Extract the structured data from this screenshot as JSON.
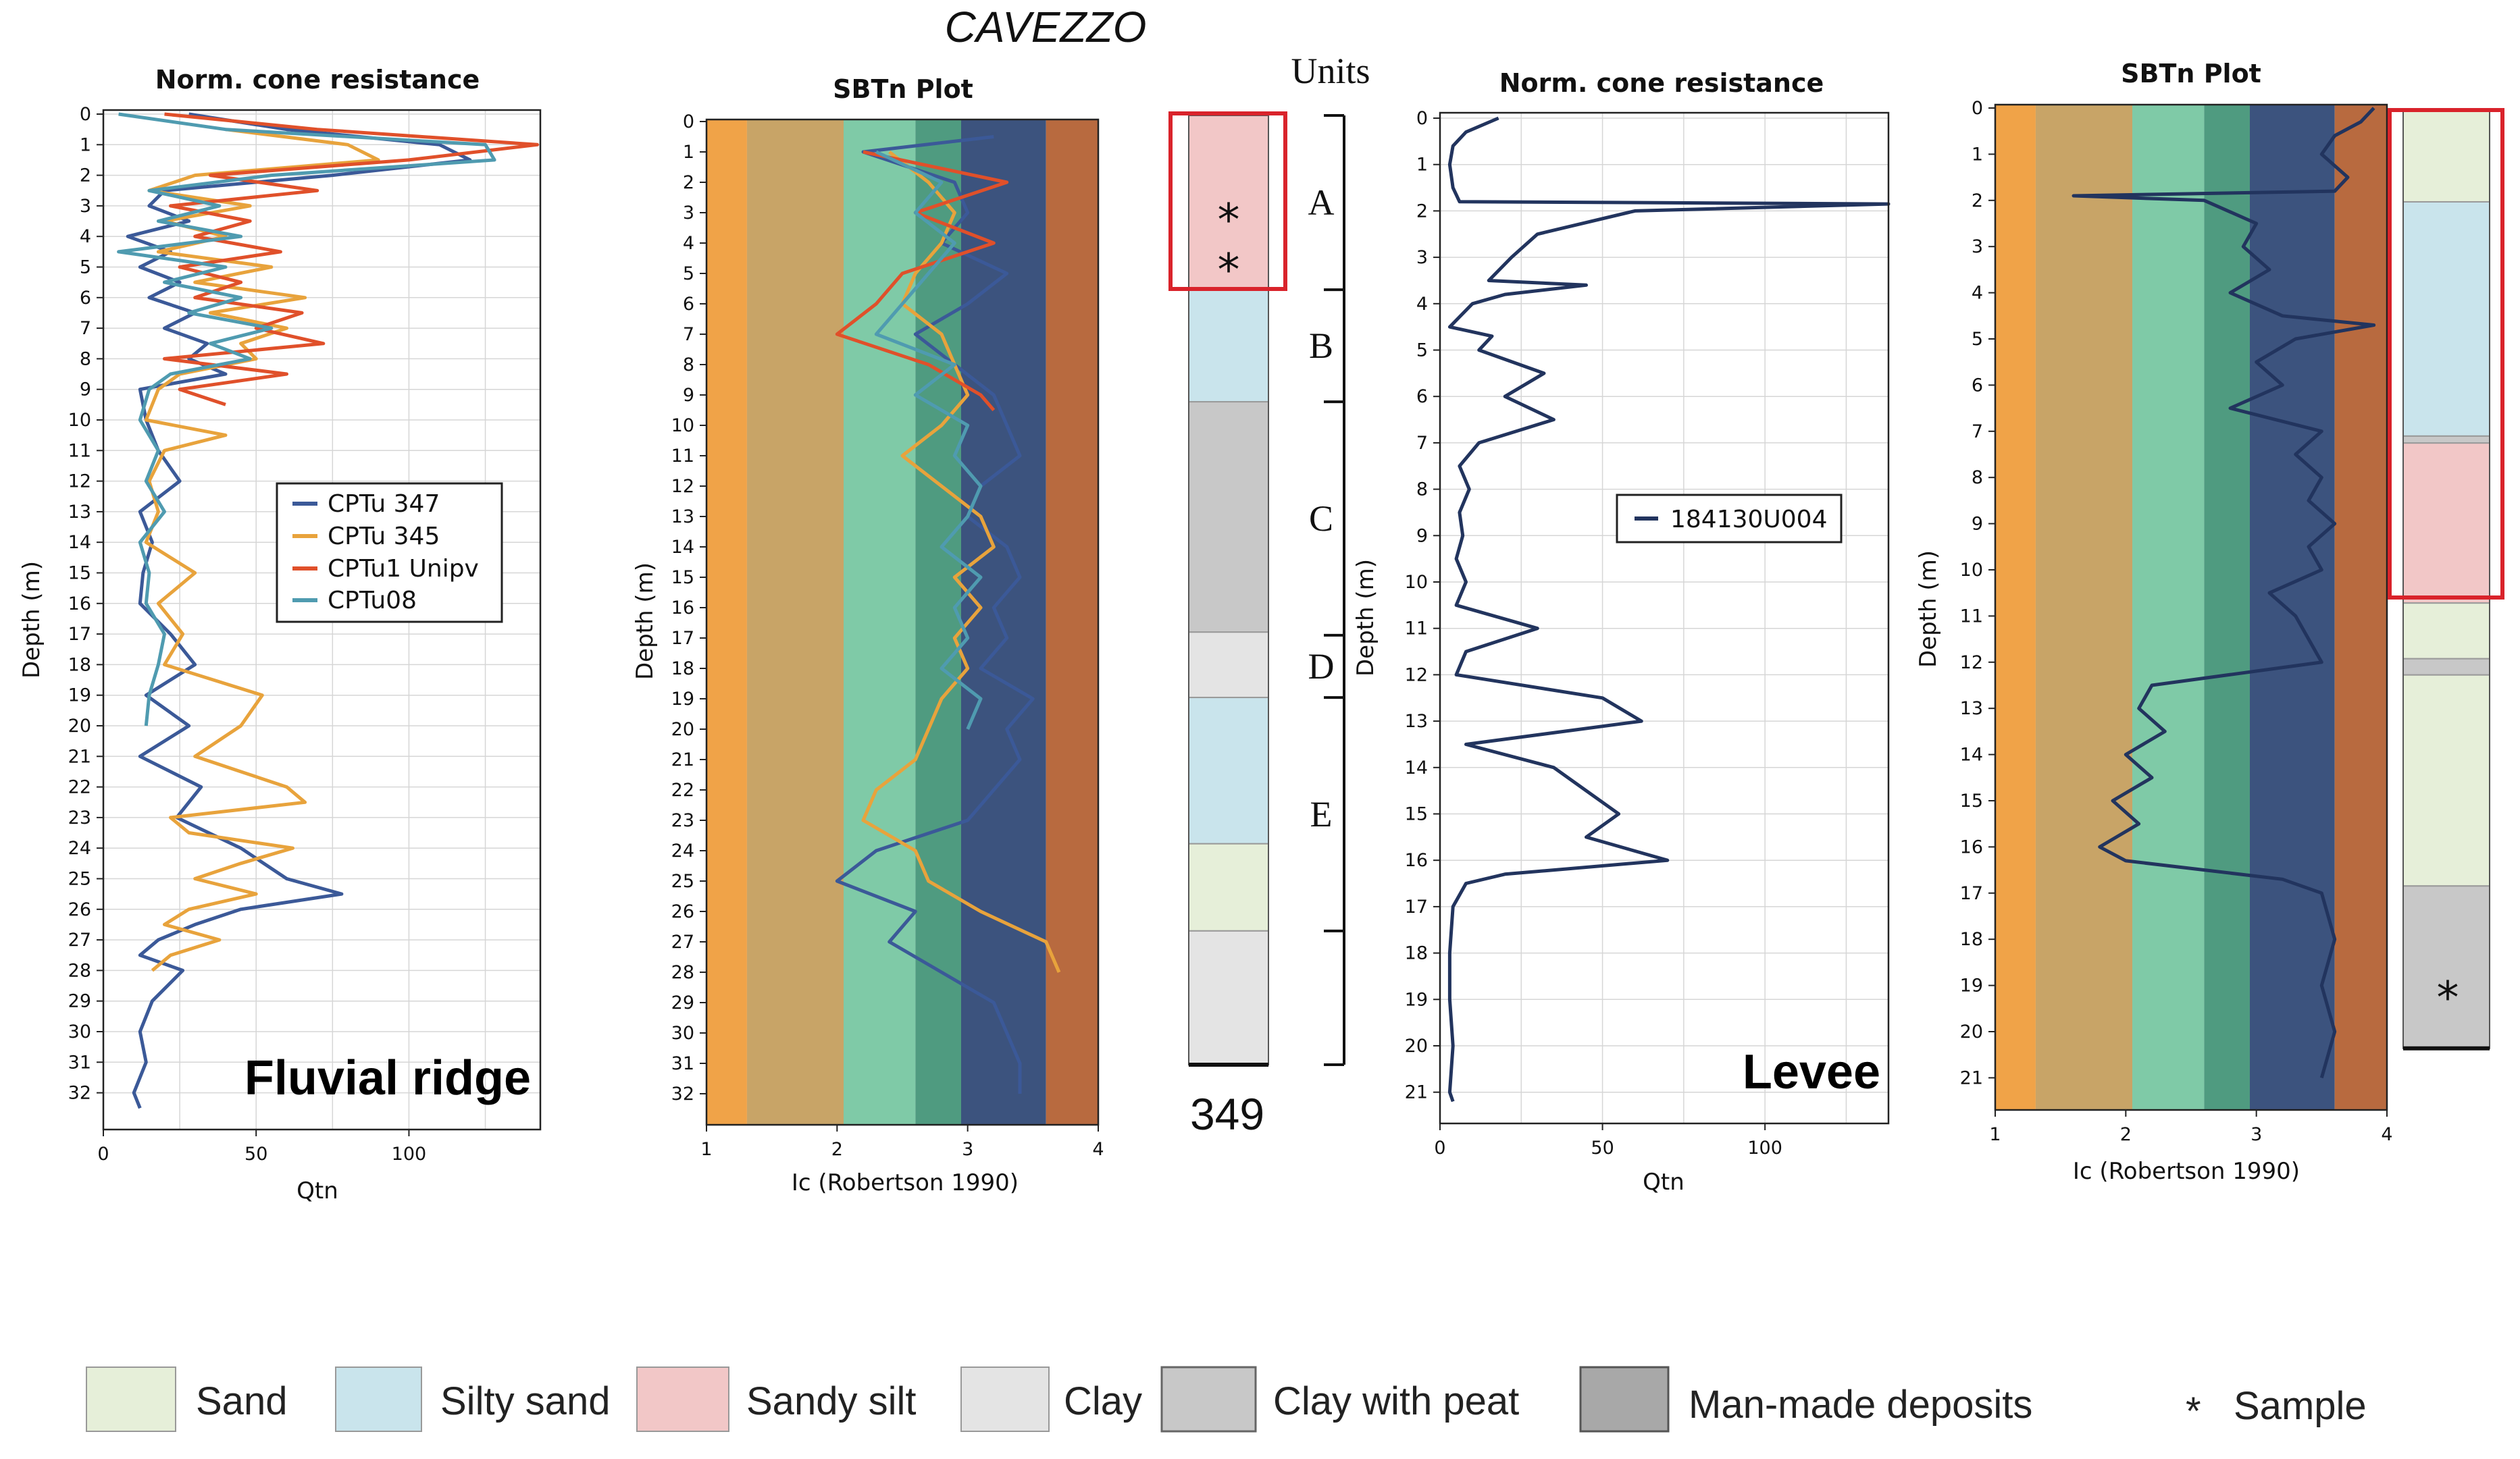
{
  "figure": {
    "title": "CAVEZZO",
    "units_label": "Units",
    "site_label": "349",
    "left_annotation": "Fluvial ridge",
    "right_annotation": "Levee",
    "sample_marker": "*"
  },
  "colors": {
    "cpt347": "#3b5998",
    "cpt345": "#e8a33c",
    "cptu1": "#e0502a",
    "cptu08": "#4f9bb0",
    "levee_line": "#22345e",
    "sbt": [
      "#f0a348",
      "#c8a467",
      "#7fcaa7",
      "#4f9b80",
      "#3c537e",
      "#b86a3f"
    ],
    "sand": "#e6efd9",
    "silty_sand": "#c9e4ec",
    "sandy_silt": "#f2c7c7",
    "clay": "#e4e4e4",
    "clay_peat": "#c8c8c8",
    "manmade": "#a8a8a8",
    "outline": "#d9232b"
  },
  "chart_data": [
    {
      "id": "qtn_fluvial",
      "type": "line",
      "title": "Norm. cone resistance",
      "xlabel": "Qtn",
      "ylabel": "Depth (m)",
      "xlim": [
        0,
        143
      ],
      "ylim": [
        0,
        33
      ],
      "xticks": [
        0,
        50,
        100
      ],
      "yticks": [
        0,
        1,
        2,
        3,
        4,
        5,
        6,
        7,
        8,
        9,
        10,
        11,
        12,
        13,
        14,
        15,
        16,
        17,
        18,
        19,
        20,
        21,
        22,
        23,
        24,
        25,
        26,
        27,
        28,
        29,
        30,
        31,
        32
      ],
      "series": [
        {
          "name": "CPTu 347",
          "color_key": "cpt347",
          "depth": [
            0,
            0.5,
            1,
            1.5,
            2,
            2.5,
            3,
            3.5,
            4,
            4.5,
            5,
            5.5,
            6,
            6.5,
            7,
            7.5,
            8,
            8.5,
            9,
            10,
            11,
            12,
            13,
            14,
            15,
            16,
            17,
            18,
            19,
            20,
            21,
            22,
            23,
            24,
            25,
            25.5,
            26,
            26.5,
            27,
            27.5,
            28,
            29,
            30,
            31,
            32,
            32.5
          ],
          "qtn": [
            28,
            60,
            110,
            120,
            75,
            20,
            15,
            28,
            8,
            22,
            12,
            25,
            15,
            30,
            20,
            34,
            28,
            40,
            12,
            14,
            18,
            25,
            12,
            16,
            13,
            12,
            22,
            30,
            14,
            28,
            12,
            32,
            24,
            45,
            60,
            78,
            45,
            30,
            18,
            12,
            26,
            16,
            12,
            14,
            10,
            12
          ]
        },
        {
          "name": "CPTu 345",
          "color_key": "cpt345",
          "depth": [
            0.5,
            1,
            1.5,
            2,
            2.5,
            3,
            3.5,
            4,
            4.5,
            5,
            5.5,
            6,
            6.5,
            7,
            7.5,
            8,
            8.5,
            9,
            10,
            10.5,
            11,
            12,
            13,
            14,
            15,
            16,
            17,
            18,
            19,
            20,
            21,
            22,
            22.5,
            23,
            23.5,
            24,
            24.5,
            25,
            25.5,
            26,
            26.5,
            27,
            27.5,
            28
          ],
          "qtn": [
            40,
            80,
            90,
            30,
            15,
            48,
            20,
            40,
            18,
            55,
            30,
            66,
            35,
            60,
            45,
            50,
            25,
            18,
            14,
            40,
            20,
            15,
            18,
            14,
            30,
            18,
            26,
            20,
            52,
            45,
            30,
            60,
            66,
            22,
            28,
            62,
            45,
            30,
            50,
            28,
            20,
            38,
            22,
            16
          ]
        },
        {
          "name": "CPTu1 Unipv",
          "color_key": "cptu1",
          "depth": [
            0,
            0.5,
            1,
            1.5,
            2,
            2.5,
            3,
            3.5,
            4,
            4.5,
            5,
            5.5,
            6,
            6.5,
            7,
            7.5,
            8,
            8.5,
            9,
            9.5
          ],
          "qtn": [
            20,
            70,
            142,
            100,
            35,
            70,
            22,
            48,
            30,
            58,
            25,
            45,
            30,
            65,
            50,
            72,
            20,
            60,
            25,
            40
          ]
        },
        {
          "name": "CPTu08",
          "color_key": "cptu08",
          "depth": [
            0,
            0.5,
            1,
            1.5,
            2,
            2.5,
            3,
            3.5,
            4,
            4.5,
            5,
            5.5,
            6,
            6.5,
            7,
            7.5,
            8,
            8.5,
            9,
            10,
            11,
            12,
            13,
            14,
            15,
            16,
            17,
            18,
            19,
            20
          ],
          "qtn": [
            5,
            40,
            125,
            128,
            55,
            15,
            38,
            18,
            45,
            5,
            40,
            20,
            45,
            28,
            55,
            35,
            48,
            22,
            15,
            12,
            18,
            14,
            20,
            12,
            15,
            14,
            20,
            18,
            15,
            14
          ]
        }
      ]
    },
    {
      "id": "sbtn_fluvial",
      "type": "line",
      "title": "SBTn Plot",
      "xlabel": "Ic (Robertson 1990)",
      "ylabel": "Depth (m)",
      "xlim": [
        1,
        4
      ],
      "ylim": [
        0,
        33
      ],
      "xticks": [
        1,
        2,
        3,
        4
      ],
      "yticks": [
        0,
        1,
        2,
        3,
        4,
        5,
        6,
        7,
        8,
        9,
        10,
        11,
        12,
        13,
        14,
        15,
        16,
        17,
        18,
        19,
        20,
        21,
        22,
        23,
        24,
        25,
        26,
        27,
        28,
        29,
        30,
        31,
        32
      ],
      "zone_bounds": [
        1,
        1.31,
        2.05,
        2.6,
        2.95,
        3.6,
        4
      ],
      "series": [
        {
          "name": "CPTu 347",
          "color_key": "cpt347",
          "depth": [
            0.5,
            1,
            2,
            3,
            4,
            5,
            6,
            7,
            8,
            9,
            10,
            11,
            12,
            13,
            14,
            15,
            16,
            17,
            18,
            19,
            20,
            21,
            22,
            23,
            24,
            25,
            26,
            27,
            28,
            29,
            30,
            31,
            32
          ],
          "ic": [
            3.2,
            2.2,
            2.9,
            3.0,
            2.8,
            3.3,
            3.0,
            2.6,
            2.9,
            3.2,
            3.3,
            3.4,
            3.1,
            3.0,
            3.3,
            3.4,
            3.2,
            3.3,
            3.1,
            3.5,
            3.3,
            3.4,
            3.2,
            3.0,
            2.3,
            2.0,
            2.6,
            2.4,
            2.8,
            3.2,
            3.3,
            3.4,
            3.4
          ]
        },
        {
          "name": "CPTu 345",
          "color_key": "cpt345",
          "depth": [
            1,
            2,
            3,
            4,
            5,
            6,
            7,
            8,
            9,
            10,
            11,
            12,
            13,
            14,
            15,
            16,
            17,
            18,
            19,
            20,
            21,
            22,
            23,
            24,
            25,
            26,
            27,
            28
          ],
          "ic": [
            2.4,
            2.7,
            2.9,
            2.8,
            2.6,
            2.5,
            2.8,
            2.9,
            3.0,
            2.8,
            2.5,
            2.8,
            3.1,
            3.2,
            2.9,
            3.1,
            2.9,
            3.0,
            2.8,
            2.7,
            2.6,
            2.3,
            2.2,
            2.6,
            2.7,
            3.1,
            3.6,
            3.7
          ]
        },
        {
          "name": "CPTu1 Unipv",
          "color_key": "cptu1",
          "depth": [
            1,
            2,
            3,
            4,
            5,
            6,
            7,
            8,
            9,
            9.5
          ],
          "ic": [
            2.2,
            3.3,
            2.6,
            3.2,
            2.5,
            2.3,
            2.0,
            2.7,
            3.1,
            3.2
          ]
        },
        {
          "name": "CPTu08",
          "color_key": "cptu08",
          "depth": [
            1,
            2,
            3,
            4,
            5,
            6,
            7,
            8,
            9,
            10,
            11,
            12,
            13,
            14,
            15,
            16,
            17,
            18,
            19,
            20
          ],
          "ic": [
            2.3,
            2.8,
            2.6,
            2.9,
            2.7,
            2.5,
            2.3,
            2.9,
            2.6,
            3.0,
            2.9,
            3.1,
            3.0,
            2.8,
            3.1,
            2.9,
            3.0,
            2.8,
            3.1,
            3.0
          ]
        }
      ]
    },
    {
      "id": "qtn_levee",
      "type": "line",
      "title": "Norm. cone resistance",
      "xlabel": "Qtn",
      "ylabel": "Depth (m)",
      "xlim": [
        0,
        138
      ],
      "ylim": [
        0,
        21.5
      ],
      "xticks": [
        0,
        50,
        100
      ],
      "yticks": [
        0,
        1,
        2,
        3,
        4,
        5,
        6,
        7,
        8,
        9,
        10,
        11,
        12,
        13,
        14,
        15,
        16,
        17,
        18,
        19,
        20,
        21
      ],
      "series": [
        {
          "name": "184130U004",
          "color_key": "levee_line",
          "depth": [
            0,
            0.3,
            0.6,
            1,
            1.5,
            1.8,
            1.85,
            2,
            2.5,
            3,
            3.5,
            3.6,
            3.8,
            4,
            4.5,
            4.7,
            5,
            5.5,
            6,
            6.5,
            7,
            7.5,
            8,
            8.5,
            9,
            9.5,
            10,
            10.5,
            11,
            11.5,
            12,
            12.5,
            13,
            13.5,
            14,
            14.5,
            15,
            15.5,
            16,
            16.3,
            16.5,
            17,
            18,
            19,
            20,
            21,
            21.2
          ],
          "qtn": [
            18,
            8,
            4,
            3,
            4,
            6,
            138,
            60,
            30,
            22,
            15,
            45,
            20,
            10,
            3,
            16,
            12,
            32,
            20,
            35,
            12,
            6,
            9,
            6,
            7,
            5,
            8,
            5,
            30,
            8,
            5,
            50,
            62,
            8,
            35,
            45,
            55,
            45,
            70,
            20,
            8,
            4,
            3,
            3,
            4,
            3,
            4
          ]
        }
      ]
    },
    {
      "id": "sbtn_levee",
      "type": "line",
      "title": "SBTn Plot",
      "xlabel": "Ic (Robertson 1990)",
      "ylabel": "Depth (m)",
      "xlim": [
        1,
        4
      ],
      "ylim": [
        0,
        21.5
      ],
      "xticks": [
        1,
        2,
        3,
        4
      ],
      "yticks": [
        0,
        1,
        2,
        3,
        4,
        5,
        6,
        7,
        8,
        9,
        10,
        11,
        12,
        13,
        14,
        15,
        16,
        17,
        18,
        19,
        20,
        21
      ],
      "zone_bounds": [
        1,
        1.31,
        2.05,
        2.6,
        2.95,
        3.6,
        4
      ],
      "series": [
        {
          "name": "184130U004",
          "color_key": "levee_line",
          "depth": [
            0,
            0.3,
            0.6,
            1,
            1.5,
            1.8,
            1.9,
            2,
            2.5,
            3,
            3.5,
            4,
            4.5,
            4.7,
            5,
            5.5,
            6,
            6.5,
            7,
            7.5,
            8,
            8.5,
            9,
            9.5,
            10,
            10.5,
            11,
            11.5,
            12,
            12.5,
            13,
            13.5,
            14,
            14.5,
            15,
            15.5,
            16,
            16.3,
            16.7,
            17,
            18,
            19,
            20,
            21
          ],
          "ic": [
            3.9,
            3.8,
            3.6,
            3.5,
            3.7,
            3.6,
            1.6,
            2.6,
            3.0,
            2.9,
            3.1,
            2.8,
            3.2,
            3.9,
            3.3,
            3.0,
            3.2,
            2.8,
            3.5,
            3.3,
            3.5,
            3.4,
            3.6,
            3.4,
            3.5,
            3.1,
            3.3,
            3.4,
            3.5,
            2.2,
            2.1,
            2.3,
            2.0,
            2.2,
            1.9,
            2.1,
            1.8,
            2.0,
            3.2,
            3.5,
            3.6,
            3.5,
            3.6,
            3.5
          ]
        }
      ]
    }
  ],
  "column_349": {
    "depth_range": [
      0,
      30.5
    ],
    "layers": [
      {
        "top": 0,
        "bottom": 5.6,
        "type": "sandy_silt"
      },
      {
        "top": 5.6,
        "bottom": 9.2,
        "type": "silty_sand"
      },
      {
        "top": 9.2,
        "bottom": 16.6,
        "type": "clay_peat"
      },
      {
        "top": 16.6,
        "bottom": 18.7,
        "type": "clay"
      },
      {
        "top": 18.7,
        "bottom": 23.4,
        "type": "silty_sand"
      },
      {
        "top": 23.4,
        "bottom": 26.2,
        "type": "sand"
      },
      {
        "top": 26.2,
        "bottom": 30.5,
        "type": "clay"
      }
    ],
    "samples": [
      {
        "depth": 3.2
      },
      {
        "depth": 4.8
      }
    ]
  },
  "units": [
    {
      "label": "A",
      "top": 0,
      "bottom": 5.6
    },
    {
      "label": "B",
      "top": 5.6,
      "bottom": 9.2
    },
    {
      "label": "C",
      "top": 9.2,
      "bottom": 16.7
    },
    {
      "label": "D",
      "top": 16.7,
      "bottom": 18.7
    },
    {
      "label": "E",
      "top": 18.7,
      "bottom": 26.2
    },
    {
      "label": "",
      "top": 26.2,
      "bottom": 30.5
    }
  ],
  "column_levee": {
    "depth_range": [
      0,
      20.2
    ],
    "layers": [
      {
        "top": 0,
        "bottom": 1.95,
        "type": "sand"
      },
      {
        "top": 1.95,
        "bottom": 7.0,
        "type": "silty_sand"
      },
      {
        "top": 7.0,
        "bottom": 7.15,
        "type": "clay_peat"
      },
      {
        "top": 7.15,
        "bottom": 10.6,
        "type": "sandy_silt"
      },
      {
        "top": 10.6,
        "bottom": 11.8,
        "type": "sand"
      },
      {
        "top": 11.8,
        "bottom": 12.15,
        "type": "clay_peat"
      },
      {
        "top": 12.15,
        "bottom": 16.7,
        "type": "sand"
      },
      {
        "top": 16.7,
        "bottom": 20.2,
        "type": "clay_peat"
      }
    ],
    "samples": [
      {
        "depth": 19.0
      }
    ]
  },
  "legend_left": [
    "CPTu 347",
    "CPTu 345",
    "CPTu1 Unipv",
    "CPTu08"
  ],
  "legend_right": [
    "184130U004"
  ],
  "lithology_legend": [
    {
      "label": "Sand",
      "color_key": "sand"
    },
    {
      "label": "Silty sand",
      "color_key": "silty_sand"
    },
    {
      "label": "Sandy silt",
      "color_key": "sandy_silt"
    },
    {
      "label": "Clay",
      "color_key": "clay"
    },
    {
      "label": "Clay with peat",
      "color_key": "clay_peat"
    },
    {
      "label": "Man-made deposits",
      "color_key": "manmade"
    }
  ],
  "sample_legend": {
    "symbol": "*",
    "label": "Sample"
  }
}
